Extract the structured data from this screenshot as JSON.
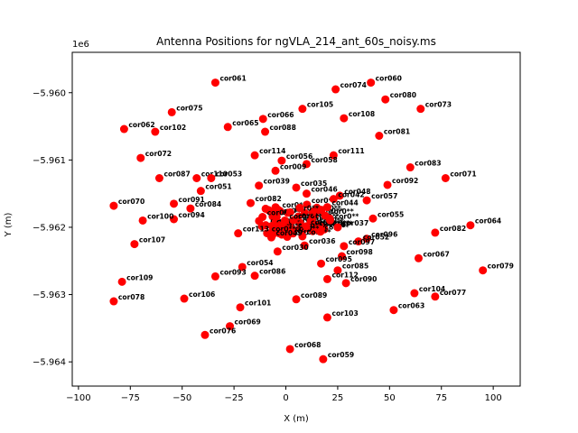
{
  "chart_data": {
    "type": "scatter",
    "title": "Antenna Positions for ngVLA_214_ant_60s_noisy.ms",
    "xlabel": "X (m)",
    "ylabel": "Y (m)",
    "y_offset_label": "1e6",
    "xlim": [
      -103,
      113
    ],
    "ylim": [
      -5964360,
      -5959400
    ],
    "x_ticks": [
      -100,
      -75,
      -50,
      -25,
      0,
      25,
      50,
      75,
      100
    ],
    "x_tick_labels": [
      "−100",
      "−75",
      "−50",
      "−25",
      "0",
      "25",
      "50",
      "75",
      "100"
    ],
    "y_ticks": [
      -5964000,
      -5963000,
      -5962000,
      -5961000,
      -5960000
    ],
    "y_tick_labels": [
      "−5.964",
      "−5.963",
      "−5.962",
      "−5.961",
      "−5.960"
    ],
    "grid": false,
    "marker_color": "#ff0000",
    "points": [
      {
        "label": "cor061",
        "x": -34,
        "y": -5959850
      },
      {
        "label": "cor060",
        "x": 41,
        "y": -5959850
      },
      {
        "label": "cor074",
        "x": 24,
        "y": -5959950
      },
      {
        "label": "cor080",
        "x": 48,
        "y": -5960100
      },
      {
        "label": "cor105",
        "x": 8,
        "y": -5960240
      },
      {
        "label": "cor075",
        "x": -55,
        "y": -5960290
      },
      {
        "label": "cor073",
        "x": 65,
        "y": -5960240
      },
      {
        "label": "cor108",
        "x": 28,
        "y": -5960380
      },
      {
        "label": "cor066",
        "x": -11,
        "y": -5960390
      },
      {
        "label": "cor065",
        "x": -28,
        "y": -5960510
      },
      {
        "label": "cor062",
        "x": -78,
        "y": -5960540
      },
      {
        "label": "cor102",
        "x": -63,
        "y": -5960580
      },
      {
        "label": "cor088",
        "x": -10,
        "y": -5960580
      },
      {
        "label": "cor081",
        "x": 45,
        "y": -5960640
      },
      {
        "label": "cor072",
        "x": -70,
        "y": -5960970
      },
      {
        "label": "cor114",
        "x": -15,
        "y": -5960930
      },
      {
        "label": "cor111",
        "x": 23,
        "y": -5960930
      },
      {
        "label": "cor056",
        "x": -2,
        "y": -5961010
      },
      {
        "label": "cor058",
        "x": 10,
        "y": -5961060
      },
      {
        "label": "cor083",
        "x": 60,
        "y": -5961110
      },
      {
        "label": "cor009",
        "x": -5,
        "y": -5961160
      },
      {
        "label": "cor071",
        "x": 77,
        "y": -5961270
      },
      {
        "label": "cor087",
        "x": -61,
        "y": -5961270
      },
      {
        "label": "cor110",
        "x": -43,
        "y": -5961270
      },
      {
        "label": "cor053",
        "x": -36,
        "y": -5961270
      },
      {
        "label": "cor092",
        "x": 49,
        "y": -5961370
      },
      {
        "label": "cor039",
        "x": -13,
        "y": -5961380
      },
      {
        "label": "cor035",
        "x": 5,
        "y": -5961410
      },
      {
        "label": "cor051",
        "x": -41,
        "y": -5961460
      },
      {
        "label": "cor046",
        "x": 10,
        "y": -5961500
      },
      {
        "label": "cor048",
        "x": 26,
        "y": -5961530
      },
      {
        "label": "cor057",
        "x": 39,
        "y": -5961600
      },
      {
        "label": "cor042",
        "x": 23,
        "y": -5961580
      },
      {
        "label": "cor091",
        "x": -54,
        "y": -5961650
      },
      {
        "label": "cor082",
        "x": -17,
        "y": -5961640
      },
      {
        "label": "cor070",
        "x": -83,
        "y": -5961680
      },
      {
        "label": "cor084",
        "x": -46,
        "y": -5961720
      },
      {
        "label": "cor044",
        "x": 20,
        "y": -5961700
      },
      {
        "label": "cor055",
        "x": 42,
        "y": -5961870
      },
      {
        "label": "cor094",
        "x": -54,
        "y": -5961880
      },
      {
        "label": "cor100",
        "x": -69,
        "y": -5961900
      },
      {
        "label": "cor064",
        "x": 89,
        "y": -5961970
      },
      {
        "label": "cor037",
        "x": 25,
        "y": -5962000
      },
      {
        "label": "cor082b",
        "x": 72,
        "y": -5962080
      },
      {
        "label": "cor113",
        "x": -23,
        "y": -5962090
      },
      {
        "label": "cor049",
        "x": -7,
        "y": -5962150
      },
      {
        "label": "cor096",
        "x": 39,
        "y": -5962170
      },
      {
        "label": "cor052",
        "x": 35,
        "y": -5962210
      },
      {
        "label": "cor107",
        "x": -73,
        "y": -5962250
      },
      {
        "label": "cor036",
        "x": 9,
        "y": -5962270
      },
      {
        "label": "cor097",
        "x": 28,
        "y": -5962280
      },
      {
        "label": "cor030",
        "x": -4,
        "y": -5962360
      },
      {
        "label": "cor098",
        "x": 27,
        "y": -5962430
      },
      {
        "label": "cor067",
        "x": 64,
        "y": -5962460
      },
      {
        "label": "cor054",
        "x": -21,
        "y": -5962590
      },
      {
        "label": "cor095",
        "x": 17,
        "y": -5962540
      },
      {
        "label": "cor085",
        "x": 25,
        "y": -5962640
      },
      {
        "label": "cor079",
        "x": 95,
        "y": -5962640
      },
      {
        "label": "cor093",
        "x": -34,
        "y": -5962730
      },
      {
        "label": "cor086",
        "x": -15,
        "y": -5962720
      },
      {
        "label": "cor112",
        "x": 20,
        "y": -5962770
      },
      {
        "label": "cor109",
        "x": -79,
        "y": -5962810
      },
      {
        "label": "cor090",
        "x": 29,
        "y": -5962830
      },
      {
        "label": "cor104",
        "x": 62,
        "y": -5962980
      },
      {
        "label": "cor077",
        "x": 72,
        "y": -5963030
      },
      {
        "label": "cor078",
        "x": -83,
        "y": -5963100
      },
      {
        "label": "cor106",
        "x": -49,
        "y": -5963060
      },
      {
        "label": "cor089",
        "x": 5,
        "y": -5963070
      },
      {
        "label": "cor101",
        "x": -22,
        "y": -5963190
      },
      {
        "label": "cor063",
        "x": 52,
        "y": -5963230
      },
      {
        "label": "cor103",
        "x": 20,
        "y": -5963340
      },
      {
        "label": "cor069",
        "x": -27,
        "y": -5963470
      },
      {
        "label": "cor076",
        "x": -39,
        "y": -5963600
      },
      {
        "label": "cor068",
        "x": 2,
        "y": -5963810
      },
      {
        "label": "cor059",
        "x": 18,
        "y": -5963960
      }
    ],
    "core_label": "cor0**"
  }
}
